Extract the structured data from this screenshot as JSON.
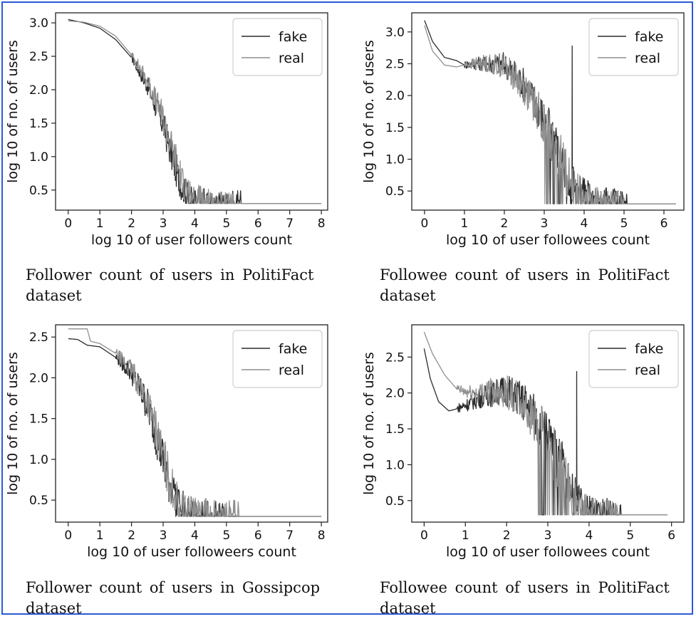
{
  "colors": {
    "fake": "#2b2b2b",
    "real": "#8f8f8f",
    "frame": "#2a5bd7"
  },
  "panels": [
    {
      "caption": "Follower count of users in PolitiFact dataset",
      "chart_data": {
        "type": "line",
        "xlabel": "log 10 of user followers count",
        "ylabel": "log 10 of no. of users",
        "xlim": [
          -0.4,
          8.2
        ],
        "ylim": [
          0.2,
          3.15
        ],
        "xticks": [
          0,
          1,
          2,
          3,
          4,
          5,
          6,
          7,
          8
        ],
        "yticks": [
          0.5,
          1.0,
          1.5,
          2.0,
          2.5,
          3.0
        ],
        "legend": "top-right",
        "series": [
          {
            "name": "fake",
            "points": [
              [
                0,
                3.05
              ],
              [
                0.5,
                3.0
              ],
              [
                1,
                2.92
              ],
              [
                1.5,
                2.75
              ],
              [
                2,
                2.48
              ],
              [
                2.5,
                2.05
              ],
              [
                3,
                1.45
              ],
              [
                3.3,
                0.95
              ],
              [
                3.6,
                0.5
              ],
              [
                3.9,
                0.35
              ],
              [
                4.5,
                0.3
              ],
              [
                8,
                0.3
              ]
            ],
            "noise": {
              "from": 2.0,
              "to": 5.5,
              "spike": null
            }
          },
          {
            "name": "real",
            "points": [
              [
                0,
                3.03
              ],
              [
                0.5,
                3.01
              ],
              [
                1,
                2.95
              ],
              [
                1.5,
                2.8
              ],
              [
                2,
                2.52
              ],
              [
                2.5,
                2.12
              ],
              [
                3,
                1.55
              ],
              [
                3.3,
                1.05
              ],
              [
                3.6,
                0.6
              ],
              [
                3.9,
                0.38
              ],
              [
                4.5,
                0.3
              ],
              [
                8,
                0.3
              ]
            ],
            "noise": {
              "from": 2.0,
              "to": 5.3,
              "spike": null
            }
          }
        ]
      }
    },
    {
      "caption": "Followee count of users in PolitiFact dataset",
      "chart_data": {
        "type": "line",
        "xlabel": "log 10 of user followees count",
        "ylabel": "log 10 of no. of users",
        "xlim": [
          -0.32,
          6.5
        ],
        "ylim": [
          0.2,
          3.3
        ],
        "xticks": [
          0,
          1,
          2,
          3,
          4,
          5,
          6
        ],
        "yticks": [
          0.5,
          1.0,
          1.5,
          2.0,
          2.5,
          3.0
        ],
        "legend": "top-right",
        "series": [
          {
            "name": "fake",
            "points": [
              [
                0,
                3.18
              ],
              [
                0.2,
                2.85
              ],
              [
                0.5,
                2.6
              ],
              [
                0.8,
                2.55
              ],
              [
                1,
                2.48
              ],
              [
                1.5,
                2.5
              ],
              [
                2,
                2.48
              ],
              [
                2.5,
                2.15
              ],
              [
                3,
                1.6
              ],
              [
                3.3,
                1.15
              ],
              [
                3.7,
                0.6
              ],
              [
                4.2,
                0.38
              ],
              [
                5,
                0.3
              ],
              [
                6.3,
                0.3
              ]
            ],
            "noise": {
              "from": 1.0,
              "to": 5.1,
              "spike": [
                3.7,
                2.78
              ]
            }
          },
          {
            "name": "real",
            "points": [
              [
                0,
                3.1
              ],
              [
                0.2,
                2.7
              ],
              [
                0.5,
                2.48
              ],
              [
                0.8,
                2.45
              ],
              [
                1,
                2.48
              ],
              [
                1.5,
                2.5
              ],
              [
                2,
                2.45
              ],
              [
                2.5,
                2.1
              ],
              [
                3,
                1.55
              ],
              [
                3.3,
                1.1
              ],
              [
                3.7,
                0.55
              ],
              [
                4.2,
                0.35
              ],
              [
                5,
                0.3
              ],
              [
                6.3,
                0.3
              ]
            ],
            "noise": {
              "from": 1.0,
              "to": 5.0,
              "spike": null
            }
          }
        ]
      }
    },
    {
      "caption": "Follower count of users in Gossipcop dataset",
      "chart_data": {
        "type": "line",
        "xlabel": "log 10 of user followeers count",
        "ylabel": "log 10 of no. of users",
        "xlim": [
          -0.4,
          8.2
        ],
        "ylim": [
          0.23,
          2.65
        ],
        "xticks": [
          0,
          1,
          2,
          3,
          4,
          5,
          6,
          7,
          8
        ],
        "yticks": [
          0.5,
          1.0,
          1.5,
          2.0,
          2.5
        ],
        "legend": "top-right",
        "series": [
          {
            "name": "fake",
            "points": [
              [
                0,
                2.48
              ],
              [
                0.3,
                2.47
              ],
              [
                0.6,
                2.4
              ],
              [
                1,
                2.38
              ],
              [
                1.5,
                2.25
              ],
              [
                2,
                2.05
              ],
              [
                2.5,
                1.65
              ],
              [
                2.8,
                1.25
              ],
              [
                3.1,
                0.8
              ],
              [
                3.4,
                0.45
              ],
              [
                3.8,
                0.33
              ],
              [
                4.5,
                0.3
              ],
              [
                8,
                0.3
              ]
            ],
            "noise": {
              "from": 1.5,
              "to": 5.0,
              "spike": null
            }
          },
          {
            "name": "real",
            "points": [
              [
                0,
                2.6
              ],
              [
                0.6,
                2.6
              ],
              [
                0.7,
                2.45
              ],
              [
                1,
                2.42
              ],
              [
                1.5,
                2.3
              ],
              [
                2,
                2.08
              ],
              [
                2.5,
                1.7
              ],
              [
                2.8,
                1.3
              ],
              [
                3.1,
                0.85
              ],
              [
                3.4,
                0.5
              ],
              [
                3.8,
                0.35
              ],
              [
                4.5,
                0.3
              ],
              [
                8,
                0.3
              ]
            ],
            "noise": {
              "from": 1.5,
              "to": 5.4,
              "spike": null
            }
          }
        ]
      }
    },
    {
      "caption": "Followee count of users in PolitiFact dataset",
      "chart_data": {
        "type": "line",
        "xlabel": "log 10 of user followees count",
        "ylabel": "log 10 of no. of users",
        "xlim": [
          -0.3,
          6.3
        ],
        "ylim": [
          0.2,
          2.95
        ],
        "xticks": [
          0,
          1,
          2,
          3,
          4,
          5,
          6
        ],
        "yticks": [
          0.5,
          1.0,
          1.5,
          2.0,
          2.5
        ],
        "legend": "top-right",
        "series": [
          {
            "name": "fake",
            "points": [
              [
                0,
                2.62
              ],
              [
                0.15,
                2.2
              ],
              [
                0.35,
                1.88
              ],
              [
                0.6,
                1.75
              ],
              [
                0.8,
                1.78
              ],
              [
                1,
                1.82
              ],
              [
                1.5,
                1.95
              ],
              [
                2,
                2.02
              ],
              [
                2.5,
                1.8
              ],
              [
                3,
                1.35
              ],
              [
                3.3,
                0.95
              ],
              [
                3.6,
                0.55
              ],
              [
                4,
                0.35
              ],
              [
                4.8,
                0.3
              ],
              [
                5.9,
                0.3
              ]
            ],
            "noise": {
              "from": 0.8,
              "to": 4.8,
              "spike": [
                3.7,
                2.3
              ]
            }
          },
          {
            "name": "real",
            "points": [
              [
                0,
                2.85
              ],
              [
                0.2,
                2.55
              ],
              [
                0.5,
                2.25
              ],
              [
                0.8,
                2.05
              ],
              [
                1,
                2.0
              ],
              [
                1.3,
                1.98
              ],
              [
                1.5,
                2.02
              ],
              [
                2,
                2.0
              ],
              [
                2.5,
                1.75
              ],
              [
                3,
                1.3
              ],
              [
                3.3,
                0.9
              ],
              [
                3.6,
                0.5
              ],
              [
                4,
                0.33
              ],
              [
                4.8,
                0.3
              ],
              [
                5.9,
                0.3
              ]
            ],
            "noise": {
              "from": 0.8,
              "to": 4.7,
              "spike": null
            }
          }
        ]
      }
    }
  ]
}
